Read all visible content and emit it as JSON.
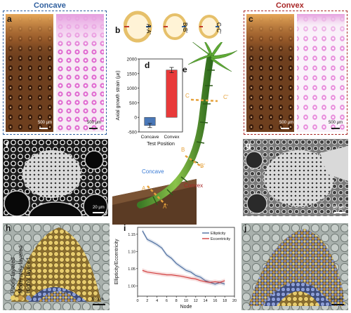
{
  "headers": {
    "concave": "Concave",
    "convex": "Convex"
  },
  "colors": {
    "concave": "#2f5f9e",
    "convex": "#a82626",
    "bar_concave": "#4a78b8",
    "bar_convex": "#e83a3a",
    "ellipticity": "#4f6fa0",
    "eccentricity": "#d24040"
  },
  "panels": {
    "a": {
      "letter": "a",
      "scale_left": "500 μm",
      "scale_right": "500 μm"
    },
    "b": {
      "letter": "b",
      "sections": [
        "A-A'",
        "B-B'",
        "C-C'"
      ]
    },
    "c": {
      "letter": "c",
      "scale_left": "500 μm",
      "scale_right": "500 μm"
    },
    "d": {
      "letter": "d"
    },
    "e": {
      "letter": "e",
      "markers": [
        "A",
        "A'",
        "B",
        "B'",
        "C",
        "C'"
      ],
      "label_concave": "Concave",
      "label_convex": "Convex"
    },
    "f": {
      "letter": "f",
      "scale": "20 μm"
    },
    "g": {
      "letter": "g",
      "scale": "20 μm"
    },
    "h": {
      "letter": "h",
      "scale": "50 μm",
      "legend": [
        "Poorly layered",
        "Moderately layered",
        "Highly layered"
      ],
      "legend_colors": [
        "#e9cf6a",
        "#c79945",
        "#7f93c9"
      ]
    },
    "i": {
      "letter": "i"
    },
    "j": {
      "letter": "j",
      "scale": "50 μm"
    }
  },
  "chart_data": [
    {
      "id": "d",
      "type": "bar",
      "categories": [
        "Concave",
        "Convex"
      ],
      "values": [
        -280,
        1620
      ],
      "errors": [
        70,
        90
      ],
      "xlabel": "Test Position",
      "ylabel": "Axial growth strain (με)",
      "ylim": [
        -500,
        2000
      ],
      "yticks": [
        -500,
        0,
        500,
        1000,
        1500,
        2000
      ]
    },
    {
      "id": "i",
      "type": "line",
      "xlabel": "Node",
      "ylabel": "Ellipticity/Eccentricity",
      "xlim": [
        0,
        20
      ],
      "ylim": [
        0.97,
        1.17
      ],
      "xticks": [
        0,
        2,
        4,
        6,
        8,
        10,
        12,
        14,
        16,
        18,
        20
      ],
      "yticks": [
        1.0,
        1.05,
        1.1,
        1.15
      ],
      "legend_position": "top-right",
      "series": [
        {
          "name": "Ellipticity",
          "x": [
            1,
            2,
            3,
            4,
            5,
            6,
            7,
            8,
            9,
            10,
            11,
            12,
            13,
            14,
            15,
            16,
            17,
            18
          ],
          "y": [
            1.16,
            1.135,
            1.128,
            1.12,
            1.11,
            1.09,
            1.08,
            1.065,
            1.055,
            1.045,
            1.04,
            1.03,
            1.025,
            1.015,
            1.01,
            1.005,
            1.01,
            1.005
          ]
        },
        {
          "name": "Eccentricity",
          "x": [
            1,
            2,
            3,
            4,
            5,
            6,
            7,
            8,
            9,
            10,
            11,
            12,
            13,
            14,
            15,
            16,
            17,
            18
          ],
          "y": [
            1.045,
            1.04,
            1.038,
            1.036,
            1.034,
            1.032,
            1.032,
            1.03,
            1.028,
            1.025,
            1.022,
            1.02,
            1.015,
            1.012,
            1.01,
            1.012,
            1.01,
            1.015
          ]
        }
      ]
    }
  ]
}
